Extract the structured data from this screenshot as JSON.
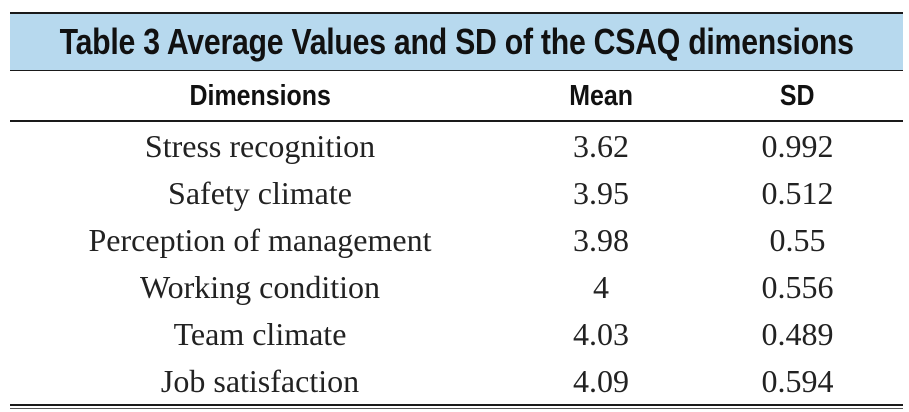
{
  "table": {
    "title": "Table 3 Average Values and SD of the CSAQ dimensions",
    "headers": {
      "dimension": "Dimensions",
      "mean": "Mean",
      "sd": "SD"
    },
    "rows": [
      {
        "dimension": "Stress recognition",
        "mean": "3.62",
        "sd": "0.992"
      },
      {
        "dimension": "Safety climate",
        "mean": "3.95",
        "sd": "0.512"
      },
      {
        "dimension": "Perception of management",
        "mean": "3.98",
        "sd": "0.55"
      },
      {
        "dimension": "Working condition",
        "mean": "4",
        "sd": "0.556"
      },
      {
        "dimension": "Team climate",
        "mean": "4.03",
        "sd": "0.489"
      },
      {
        "dimension": "Job satisfaction",
        "mean": "4.09",
        "sd": "0.594"
      }
    ]
  },
  "colors": {
    "title_band": "#b7d9ee",
    "rule": "#1a1a1a"
  }
}
